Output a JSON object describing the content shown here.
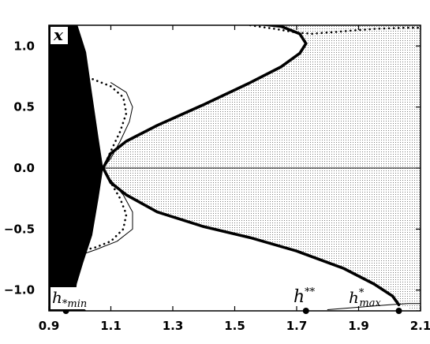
{
  "chart_data": {
    "type": "line",
    "title": "",
    "xlabel": "",
    "ylabel": "x",
    "xlim": [
      0.9,
      2.1
    ],
    "ylim": [
      -1.17,
      1.17
    ],
    "x_ticks": [
      0.9,
      1.1,
      1.3,
      1.5,
      1.7,
      1.9,
      2.1
    ],
    "x_tick_labels": [
      "0.9",
      "1.1",
      "1.3",
      "1.5",
      "1.7",
      "1.9",
      "2.1"
    ],
    "y_ticks": [
      1.0,
      0.5,
      0.0,
      -0.5,
      -1.0
    ],
    "y_tick_labels": [
      "1.0",
      "0.5",
      "0.0",
      "−0.5",
      "−1.0"
    ],
    "grid": false,
    "fill_colors": {
      "black_region": "#000000",
      "stippled_region": "#c8c8c8"
    },
    "markers": [
      {
        "x": 0.955,
        "y": -1.17
      },
      {
        "x": 1.73,
        "y": -1.17
      },
      {
        "x": 2.03,
        "y": -1.17
      }
    ],
    "series": [
      {
        "style": "thick",
        "x": [
          1.075,
          1.1,
          1.15,
          1.25,
          1.4,
          1.55,
          1.65,
          1.71,
          1.73,
          1.71,
          1.65,
          1.55,
          1.46
        ],
        "y": [
          0.0,
          0.12,
          0.22,
          0.35,
          0.52,
          0.7,
          0.83,
          0.94,
          1.02,
          1.1,
          1.16,
          1.19,
          1.19
        ]
      },
      {
        "style": "thick",
        "x": [
          1.075,
          1.1,
          1.15,
          1.25,
          1.4,
          1.55,
          1.7,
          1.85,
          1.95,
          2.01,
          2.03
        ],
        "y": [
          0.0,
          -0.12,
          -0.22,
          -0.36,
          -0.48,
          -0.57,
          -0.68,
          -0.82,
          -0.95,
          -1.05,
          -1.12
        ]
      },
      {
        "style": "thin",
        "x": [
          0.92,
          2.1
        ],
        "y": [
          0.0,
          0.0
        ]
      },
      {
        "style": "thin",
        "x": [
          1.075,
          1.1,
          1.13,
          1.16,
          1.17,
          1.15,
          1.1
        ],
        "y": [
          0.0,
          0.08,
          0.22,
          0.38,
          0.5,
          0.62,
          0.7
        ]
      },
      {
        "style": "thin",
        "x": [
          1.075,
          1.1,
          1.14,
          1.17,
          1.17,
          1.12,
          1.05,
          0.97
        ],
        "y": [
          0.0,
          -0.1,
          -0.22,
          -0.36,
          -0.5,
          -0.6,
          -0.67,
          -0.74
        ]
      },
      {
        "style": "dotted",
        "x": [
          0.98,
          1.04,
          1.1,
          1.14,
          1.15,
          1.13,
          1.1,
          1.075
        ],
        "y": [
          0.75,
          0.73,
          0.67,
          0.58,
          0.45,
          0.3,
          0.14,
          0.0
        ]
      },
      {
        "style": "dotted",
        "x": [
          1.075,
          1.1,
          1.13,
          1.15,
          1.14,
          1.1,
          1.05,
          1.0
        ],
        "y": [
          0.0,
          -0.12,
          -0.25,
          -0.38,
          -0.5,
          -0.6,
          -0.65,
          -0.68
        ]
      },
      {
        "style": "dotted",
        "x": [
          1.55,
          1.63,
          1.7,
          1.75,
          1.85,
          1.95,
          2.05,
          2.1
        ],
        "y": [
          1.17,
          1.14,
          1.11,
          1.1,
          1.12,
          1.14,
          1.15,
          1.15
        ]
      },
      {
        "style": "thin",
        "x": [
          1.8,
          1.9,
          2.0,
          2.06,
          2.1
        ],
        "y": [
          -1.16,
          -1.14,
          -1.12,
          -1.11,
          -1.11
        ]
      }
    ],
    "annotations": [
      {
        "text": "x",
        "near": "top-left"
      },
      {
        "text": "h",
        "sub": "*min",
        "near": "bottom-left"
      },
      {
        "text": "h",
        "sup": "**",
        "near": "bottom-center"
      },
      {
        "text": "h",
        "sup": "*",
        "sub": "max",
        "near": "bottom-right"
      }
    ]
  }
}
